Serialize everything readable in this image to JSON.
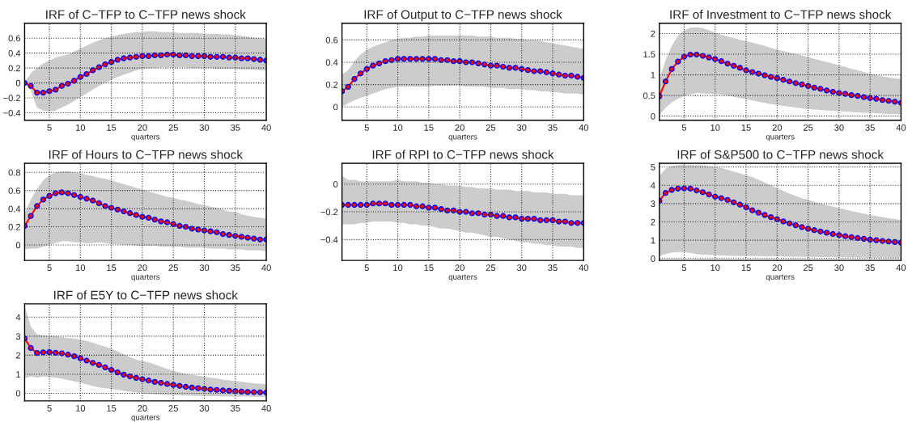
{
  "chart_data": [
    {
      "type": "line",
      "title": "IRF of C−TFP to C−TFP news shock",
      "xlabel": "quarters",
      "x": [
        1,
        2,
        3,
        4,
        5,
        6,
        7,
        8,
        9,
        10,
        11,
        12,
        13,
        14,
        15,
        16,
        17,
        18,
        19,
        20,
        21,
        22,
        23,
        24,
        25,
        26,
        27,
        28,
        29,
        30,
        31,
        32,
        33,
        34,
        35,
        36,
        37,
        38,
        39,
        40
      ],
      "xlim": [
        1,
        40
      ],
      "xticks": [
        5,
        10,
        15,
        20,
        25,
        30,
        35,
        40
      ],
      "ylim": [
        -0.5,
        0.8
      ],
      "yticks": [
        -0.4,
        -0.2,
        0,
        0.2,
        0.4,
        0.6
      ],
      "grid": true,
      "marker": "circle",
      "line_style": "solid",
      "series": [
        {
          "color": "#ff0000",
          "values": [
            0,
            -0.04,
            -0.13,
            -0.13,
            -0.11,
            -0.09,
            -0.04,
            -0.01,
            0.03,
            0.08,
            0.12,
            0.17,
            0.21,
            0.25,
            0.28,
            0.31,
            0.33,
            0.34,
            0.35,
            0.36,
            0.36,
            0.37,
            0.37,
            0.38,
            0.38,
            0.37,
            0.37,
            0.36,
            0.36,
            0.36,
            0.35,
            0.35,
            0.35,
            0.34,
            0.34,
            0.33,
            0.33,
            0.32,
            0.31,
            0.3
          ],
          "lower": [
            0,
            -0.1,
            -0.33,
            -0.37,
            -0.38,
            -0.37,
            -0.33,
            -0.29,
            -0.24,
            -0.19,
            -0.14,
            -0.09,
            -0.04,
            0.0,
            0.04,
            0.08,
            0.11,
            0.14,
            0.17,
            0.19,
            0.2,
            0.2,
            0.21,
            0.21,
            0.21,
            0.21,
            0.21,
            0.2,
            0.2,
            0.2,
            0.2,
            0.19,
            0.19,
            0.19,
            0.19,
            0.18,
            0.18,
            0.18,
            0.17,
            0.17
          ],
          "upper": [
            0,
            0.13,
            0.2,
            0.26,
            0.3,
            0.34,
            0.36,
            0.38,
            0.42,
            0.46,
            0.5,
            0.54,
            0.57,
            0.6,
            0.62,
            0.64,
            0.66,
            0.67,
            0.68,
            0.68,
            0.69,
            0.69,
            0.68,
            0.68,
            0.68,
            0.67,
            0.67,
            0.67,
            0.67,
            0.66,
            0.66,
            0.66,
            0.65,
            0.65,
            0.64,
            0.63,
            0.62,
            0.61,
            0.6,
            0.59
          ]
        }
      ]
    },
    {
      "type": "line",
      "title": "IRF of Output to C−TFP news shock",
      "xlabel": "quarters",
      "x": [
        1,
        2,
        3,
        4,
        5,
        6,
        7,
        8,
        9,
        10,
        11,
        12,
        13,
        14,
        15,
        16,
        17,
        18,
        19,
        20,
        21,
        22,
        23,
        24,
        25,
        26,
        27,
        28,
        29,
        30,
        31,
        32,
        33,
        34,
        35,
        36,
        37,
        38,
        39,
        40
      ],
      "xlim": [
        1,
        40
      ],
      "xticks": [
        5,
        10,
        15,
        20,
        25,
        30,
        35,
        40
      ],
      "ylim": [
        -0.12,
        0.75
      ],
      "yticks": [
        0,
        0.2,
        0.4,
        0.6
      ],
      "grid": true,
      "marker": "circle",
      "line_style": "solid",
      "series": [
        {
          "color": "#ff0000",
          "values": [
            0.14,
            0.18,
            0.25,
            0.3,
            0.34,
            0.37,
            0.39,
            0.41,
            0.42,
            0.43,
            0.43,
            0.43,
            0.43,
            0.43,
            0.43,
            0.43,
            0.42,
            0.42,
            0.41,
            0.41,
            0.4,
            0.4,
            0.39,
            0.38,
            0.37,
            0.37,
            0.36,
            0.35,
            0.35,
            0.34,
            0.33,
            0.32,
            0.32,
            0.31,
            0.3,
            0.29,
            0.28,
            0.28,
            0.27,
            0.26
          ],
          "lower": [
            0.0,
            0.03,
            0.06,
            0.08,
            0.1,
            0.12,
            0.14,
            0.16,
            0.17,
            0.18,
            0.18,
            0.18,
            0.18,
            0.18,
            0.18,
            0.19,
            0.19,
            0.19,
            0.19,
            0.19,
            0.18,
            0.18,
            0.18,
            0.18,
            0.17,
            0.17,
            0.17,
            0.16,
            0.16,
            0.16,
            0.15,
            0.15,
            0.14,
            0.14,
            0.13,
            0.13,
            0.12,
            0.12,
            0.12,
            0.11
          ],
          "upper": [
            0.29,
            0.33,
            0.41,
            0.47,
            0.51,
            0.54,
            0.56,
            0.58,
            0.6,
            0.61,
            0.62,
            0.62,
            0.63,
            0.63,
            0.64,
            0.64,
            0.64,
            0.64,
            0.64,
            0.64,
            0.64,
            0.64,
            0.63,
            0.63,
            0.63,
            0.62,
            0.62,
            0.62,
            0.61,
            0.61,
            0.6,
            0.6,
            0.59,
            0.58,
            0.57,
            0.56,
            0.55,
            0.54,
            0.53,
            0.52
          ]
        }
      ]
    },
    {
      "type": "line",
      "title": "IRF of Investment to C−TFP news shock",
      "xlabel": "quarters",
      "x": [
        1,
        2,
        3,
        4,
        5,
        6,
        7,
        8,
        9,
        10,
        11,
        12,
        13,
        14,
        15,
        16,
        17,
        18,
        19,
        20,
        21,
        22,
        23,
        24,
        25,
        26,
        27,
        28,
        29,
        30,
        31,
        32,
        33,
        34,
        35,
        36,
        37,
        38,
        39,
        40
      ],
      "xlim": [
        1,
        40
      ],
      "xticks": [
        5,
        10,
        15,
        20,
        25,
        30,
        35,
        40
      ],
      "ylim": [
        -0.1,
        2.25
      ],
      "yticks": [
        0,
        0.5,
        1,
        1.5,
        2
      ],
      "grid": true,
      "marker": "circle",
      "line_style": "solid",
      "series": [
        {
          "color": "#ff0000",
          "values": [
            0.48,
            0.84,
            1.14,
            1.32,
            1.44,
            1.49,
            1.49,
            1.46,
            1.42,
            1.38,
            1.33,
            1.27,
            1.22,
            1.17,
            1.11,
            1.07,
            1.03,
            0.99,
            0.95,
            0.92,
            0.88,
            0.84,
            0.8,
            0.77,
            0.73,
            0.69,
            0.66,
            0.62,
            0.59,
            0.56,
            0.54,
            0.51,
            0.49,
            0.46,
            0.44,
            0.42,
            0.39,
            0.37,
            0.35,
            0.32
          ],
          "lower": [
            0.03,
            0.2,
            0.33,
            0.42,
            0.49,
            0.53,
            0.56,
            0.55,
            0.54,
            0.54,
            0.52,
            0.5,
            0.47,
            0.44,
            0.41,
            0.38,
            0.35,
            0.32,
            0.29,
            0.27,
            0.25,
            0.23,
            0.21,
            0.19,
            0.17,
            0.16,
            0.15,
            0.14,
            0.13,
            0.12,
            0.11,
            0.1,
            0.09,
            0.08,
            0.08,
            0.07,
            0.06,
            0.05,
            0.05,
            0.04
          ],
          "upper": [
            0.9,
            1.35,
            1.7,
            1.95,
            2.08,
            2.14,
            2.15,
            2.13,
            2.08,
            2.02,
            1.97,
            1.93,
            1.89,
            1.85,
            1.82,
            1.78,
            1.74,
            1.7,
            1.65,
            1.61,
            1.58,
            1.54,
            1.5,
            1.47,
            1.43,
            1.39,
            1.35,
            1.31,
            1.27,
            1.23,
            1.19,
            1.15,
            1.11,
            1.07,
            1.03,
            0.99,
            0.96,
            0.94,
            0.92,
            0.9
          ]
        }
      ]
    },
    {
      "type": "line",
      "title": "IRF of Hours to C−TFP news shock",
      "xlabel": "quarters",
      "x": [
        1,
        2,
        3,
        4,
        5,
        6,
        7,
        8,
        9,
        10,
        11,
        12,
        13,
        14,
        15,
        16,
        17,
        18,
        19,
        20,
        21,
        22,
        23,
        24,
        25,
        26,
        27,
        28,
        29,
        30,
        31,
        32,
        33,
        34,
        35,
        36,
        37,
        38,
        39,
        40
      ],
      "xlim": [
        1,
        40
      ],
      "xticks": [
        5,
        10,
        15,
        20,
        25,
        30,
        35,
        40
      ],
      "ylim": [
        -0.17,
        0.9
      ],
      "yticks": [
        0,
        0.2,
        0.4,
        0.6,
        0.8
      ],
      "grid": true,
      "marker": "circle",
      "line_style": "solid",
      "series": [
        {
          "color": "#ff0000",
          "values": [
            0.21,
            0.32,
            0.43,
            0.5,
            0.54,
            0.57,
            0.58,
            0.57,
            0.55,
            0.53,
            0.51,
            0.49,
            0.46,
            0.43,
            0.41,
            0.39,
            0.37,
            0.35,
            0.33,
            0.31,
            0.3,
            0.28,
            0.26,
            0.25,
            0.23,
            0.21,
            0.2,
            0.18,
            0.17,
            0.16,
            0.15,
            0.14,
            0.12,
            0.11,
            0.1,
            0.09,
            0.08,
            0.07,
            0.06,
            0.06
          ],
          "lower": [
            -0.05,
            -0.04,
            -0.04,
            -0.02,
            0.0,
            0.02,
            0.04,
            0.04,
            0.03,
            0.03,
            0.02,
            0.02,
            0.03,
            0.02,
            0.01,
            0.01,
            0.0,
            0.0,
            -0.01,
            -0.01,
            -0.01,
            -0.01,
            -0.02,
            -0.02,
            -0.02,
            -0.02,
            -0.03,
            -0.03,
            -0.03,
            -0.03,
            -0.04,
            -0.04,
            -0.04,
            -0.05,
            -0.05,
            -0.05,
            -0.06,
            -0.06,
            -0.06,
            -0.07
          ],
          "upper": [
            0.35,
            0.5,
            0.62,
            0.71,
            0.77,
            0.8,
            0.81,
            0.81,
            0.8,
            0.79,
            0.77,
            0.76,
            0.74,
            0.73,
            0.71,
            0.69,
            0.67,
            0.65,
            0.63,
            0.61,
            0.59,
            0.57,
            0.55,
            0.53,
            0.52,
            0.5,
            0.49,
            0.47,
            0.45,
            0.44,
            0.42,
            0.41,
            0.39,
            0.37,
            0.36,
            0.34,
            0.32,
            0.31,
            0.3,
            0.29
          ]
        }
      ]
    },
    {
      "type": "line",
      "title": "IRF of RPI to C−TFP news shock",
      "xlabel": "quarters",
      "x": [
        1,
        2,
        3,
        4,
        5,
        6,
        7,
        8,
        9,
        10,
        11,
        12,
        13,
        14,
        15,
        16,
        17,
        18,
        19,
        20,
        21,
        22,
        23,
        24,
        25,
        26,
        27,
        28,
        29,
        30,
        31,
        32,
        33,
        34,
        35,
        36,
        37,
        38,
        39,
        40
      ],
      "xlim": [
        1,
        40
      ],
      "xticks": [
        5,
        10,
        15,
        20,
        25,
        30,
        35,
        40
      ],
      "ylim": [
        -0.55,
        0.15
      ],
      "yticks": [
        -0.4,
        -0.2,
        0
      ],
      "grid": true,
      "marker": "circle",
      "line_style": "solid",
      "series": [
        {
          "color": "#ff0000",
          "values": [
            -0.15,
            -0.15,
            -0.15,
            -0.15,
            -0.15,
            -0.14,
            -0.14,
            -0.14,
            -0.15,
            -0.15,
            -0.15,
            -0.15,
            -0.16,
            -0.16,
            -0.17,
            -0.17,
            -0.18,
            -0.19,
            -0.19,
            -0.2,
            -0.2,
            -0.21,
            -0.21,
            -0.22,
            -0.22,
            -0.23,
            -0.23,
            -0.24,
            -0.24,
            -0.25,
            -0.25,
            -0.25,
            -0.26,
            -0.26,
            -0.26,
            -0.27,
            -0.27,
            -0.28,
            -0.28,
            -0.28
          ],
          "lower": [
            -0.29,
            -0.29,
            -0.29,
            -0.28,
            -0.28,
            -0.27,
            -0.27,
            -0.27,
            -0.27,
            -0.28,
            -0.28,
            -0.29,
            -0.29,
            -0.3,
            -0.3,
            -0.31,
            -0.32,
            -0.32,
            -0.33,
            -0.34,
            -0.35,
            -0.35,
            -0.36,
            -0.37,
            -0.38,
            -0.38,
            -0.39,
            -0.4,
            -0.41,
            -0.42,
            -0.42,
            -0.43,
            -0.43,
            -0.44,
            -0.44,
            -0.45,
            -0.45,
            -0.45,
            -0.46,
            -0.46
          ],
          "upper": [
            0.06,
            0.03,
            0.03,
            0.02,
            0.02,
            0.02,
            0.02,
            0.02,
            0.02,
            0.03,
            0.02,
            0.02,
            0.02,
            0.01,
            0.01,
            0.0,
            0.0,
            -0.01,
            -0.01,
            -0.01,
            -0.02,
            -0.02,
            -0.03,
            -0.03,
            -0.03,
            -0.04,
            -0.04,
            -0.04,
            -0.05,
            -0.05,
            -0.05,
            -0.06,
            -0.06,
            -0.06,
            -0.07,
            -0.07,
            -0.07,
            -0.08,
            -0.08,
            -0.08
          ]
        }
      ]
    },
    {
      "type": "line",
      "title": "IRF of S&P500 to C−TFP news shock",
      "xlabel": "quarters",
      "x": [
        1,
        2,
        3,
        4,
        5,
        6,
        7,
        8,
        9,
        10,
        11,
        12,
        13,
        14,
        15,
        16,
        17,
        18,
        19,
        20,
        21,
        22,
        23,
        24,
        25,
        26,
        27,
        28,
        29,
        30,
        31,
        32,
        33,
        34,
        35,
        36,
        37,
        38,
        39,
        40
      ],
      "xlim": [
        1,
        40
      ],
      "xticks": [
        5,
        10,
        15,
        20,
        25,
        30,
        35,
        40
      ],
      "ylim": [
        -0.1,
        5.2
      ],
      "yticks": [
        0,
        1,
        2,
        3,
        4,
        5
      ],
      "grid": true,
      "marker": "circle",
      "line_style": "solid",
      "series": [
        {
          "color": "#ff0000",
          "values": [
            3.15,
            3.58,
            3.75,
            3.82,
            3.83,
            3.82,
            3.72,
            3.62,
            3.5,
            3.38,
            3.3,
            3.2,
            3.07,
            2.94,
            2.8,
            2.63,
            2.5,
            2.38,
            2.26,
            2.15,
            2.03,
            1.92,
            1.82,
            1.72,
            1.63,
            1.55,
            1.48,
            1.41,
            1.34,
            1.28,
            1.22,
            1.17,
            1.12,
            1.08,
            1.03,
            1.0,
            0.96,
            0.93,
            0.9,
            0.87
          ],
          "lower": [
            0.15,
            0.25,
            0.32,
            0.36,
            0.35,
            0.3,
            0.25,
            0.2,
            0.2,
            0.18,
            0.17,
            0.16,
            0.15,
            0.15,
            0.15,
            0.14,
            0.13,
            0.12,
            0.12,
            0.12,
            0.11,
            0.1,
            0.1,
            0.1,
            0.09,
            0.09,
            0.08,
            0.08,
            0.07,
            0.07,
            0.06,
            0.06,
            0.05,
            0.05,
            0.04,
            0.04,
            0.03,
            0.03,
            0.02,
            0.02
          ],
          "upper": [
            4.5,
            4.9,
            5.05,
            5.1,
            5.1,
            5.1,
            5.1,
            5.08,
            5.05,
            5.0,
            4.95,
            4.85,
            4.75,
            4.65,
            4.55,
            4.45,
            4.3,
            4.15,
            4.0,
            3.85,
            3.7,
            3.55,
            3.42,
            3.3,
            3.2,
            3.1,
            3.0,
            2.92,
            2.84,
            2.76,
            2.68,
            2.6,
            2.52,
            2.45,
            2.38,
            2.32,
            2.26,
            2.2,
            2.15,
            2.1
          ]
        }
      ]
    },
    {
      "type": "line",
      "title": "IRF of E5Y to C−TFP news shock",
      "xlabel": "quarters",
      "x": [
        1,
        2,
        3,
        4,
        5,
        6,
        7,
        8,
        9,
        10,
        11,
        12,
        13,
        14,
        15,
        16,
        17,
        18,
        19,
        20,
        21,
        22,
        23,
        24,
        25,
        26,
        27,
        28,
        29,
        30,
        31,
        32,
        33,
        34,
        35,
        36,
        37,
        38,
        39,
        40
      ],
      "xlim": [
        1,
        40
      ],
      "xticks": [
        5,
        10,
        15,
        20,
        25,
        30,
        35,
        40
      ],
      "ylim": [
        -0.4,
        4.7
      ],
      "yticks": [
        0,
        1,
        2,
        3,
        4
      ],
      "grid": true,
      "marker": "circle",
      "line_style": "solid",
      "series": [
        {
          "color": "#ff0000",
          "values": [
            2.88,
            2.38,
            2.12,
            2.15,
            2.16,
            2.13,
            2.1,
            2.03,
            1.95,
            1.84,
            1.72,
            1.6,
            1.49,
            1.36,
            1.23,
            1.1,
            0.98,
            0.89,
            0.81,
            0.74,
            0.67,
            0.6,
            0.55,
            0.49,
            0.44,
            0.39,
            0.34,
            0.3,
            0.27,
            0.23,
            0.2,
            0.18,
            0.15,
            0.13,
            0.11,
            0.09,
            0.07,
            0.06,
            0.05,
            0.04
          ],
          "lower": [
            0.8,
            0.88,
            0.82,
            0.88,
            0.86,
            0.82,
            0.76,
            0.7,
            0.63,
            0.56,
            0.47,
            0.38,
            0.31,
            0.27,
            0.23,
            0.18,
            0.13,
            0.08,
            0.04,
            0.0,
            -0.03,
            -0.05,
            -0.07,
            -0.09,
            -0.1,
            -0.11,
            -0.12,
            -0.13,
            -0.14,
            -0.14,
            -0.15,
            -0.15,
            -0.16,
            -0.16,
            -0.17,
            -0.17,
            -0.17,
            -0.18,
            -0.18,
            -0.18
          ],
          "upper": [
            4.6,
            3.5,
            3.1,
            3.05,
            3.0,
            3.0,
            2.95,
            2.9,
            2.88,
            2.82,
            2.75,
            2.65,
            2.55,
            2.45,
            2.35,
            2.2,
            2.05,
            1.9,
            1.77,
            1.7,
            1.62,
            1.52,
            1.4,
            1.28,
            1.18,
            1.1,
            1.02,
            0.97,
            0.92,
            0.87,
            0.82,
            0.77,
            0.72,
            0.68,
            0.64,
            0.6,
            0.56,
            0.53,
            0.5,
            0.48
          ]
        }
      ]
    }
  ]
}
